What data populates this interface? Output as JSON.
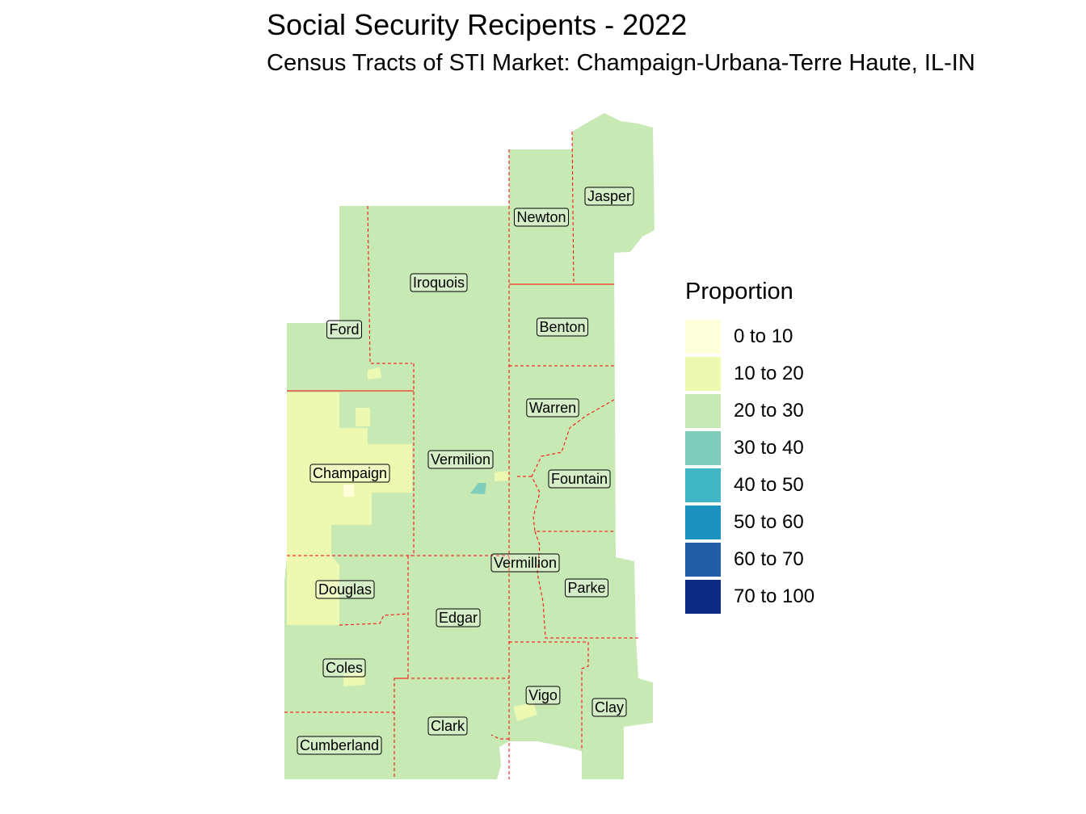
{
  "header": {
    "title": "Social Security Recipents - 2022",
    "subtitle": "Census Tracts of STI Market: Champaign-Urbana-Terre Haute, IL-IN"
  },
  "map": {
    "base_color": "#c7e9b4",
    "low_color": "#edf8b1",
    "mid_color": "#7fcdbb",
    "boundary_color": "#ff0000",
    "counties": [
      {
        "id": "jasper",
        "label": "Jasper"
      },
      {
        "id": "newton",
        "label": "Newton"
      },
      {
        "id": "iroquois",
        "label": "Iroquois"
      },
      {
        "id": "ford",
        "label": "Ford"
      },
      {
        "id": "benton",
        "label": "Benton"
      },
      {
        "id": "warren",
        "label": "Warren"
      },
      {
        "id": "vermilion",
        "label": "Vermilion"
      },
      {
        "id": "champaign",
        "label": "Champaign"
      },
      {
        "id": "fountain",
        "label": "Fountain"
      },
      {
        "id": "vermillion",
        "label": "Vermillion"
      },
      {
        "id": "parke",
        "label": "Parke"
      },
      {
        "id": "douglas",
        "label": "Douglas"
      },
      {
        "id": "edgar",
        "label": "Edgar"
      },
      {
        "id": "coles",
        "label": "Coles"
      },
      {
        "id": "vigo",
        "label": "Vigo"
      },
      {
        "id": "clay",
        "label": "Clay"
      },
      {
        "id": "clark",
        "label": "Clark"
      },
      {
        "id": "cumberland",
        "label": "Cumberland"
      }
    ]
  },
  "legend": {
    "title": "Proportion",
    "items": [
      {
        "label": "0 to 10",
        "color": "#ffffd9"
      },
      {
        "label": "10 to 20",
        "color": "#edf8b1"
      },
      {
        "label": "20 to 30",
        "color": "#c7e9b4"
      },
      {
        "label": "30 to 40",
        "color": "#7fcdbb"
      },
      {
        "label": "40 to 50",
        "color": "#41b6c4"
      },
      {
        "label": "50 to 60",
        "color": "#1d91c0"
      },
      {
        "label": "60 to 70",
        "color": "#225ea8"
      },
      {
        "label": "70 to 100",
        "color": "#0c2c84"
      }
    ]
  }
}
